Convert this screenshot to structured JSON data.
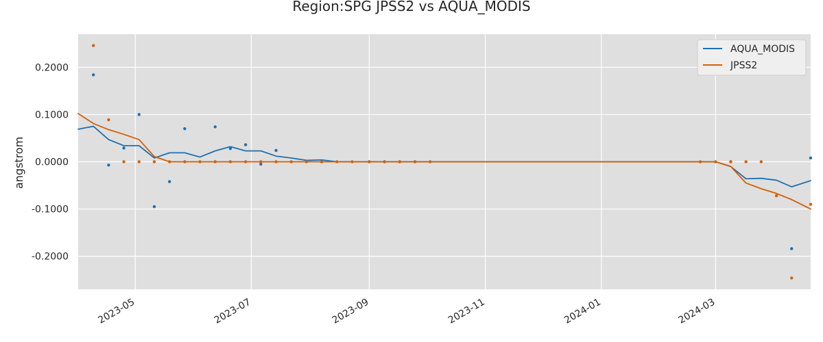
{
  "chart_data": {
    "type": "line",
    "title": "Region:SPG JPSS2 vs AQUA_MODIS",
    "xlabel": "",
    "ylabel": "angstrom",
    "xlim": [
      "2023-04-01",
      "2024-04-20"
    ],
    "ylim": [
      -0.27,
      0.27
    ],
    "grid": true,
    "legend_position": "top-right",
    "x_ticks": [
      "2023-05-01",
      "2023-07-01",
      "2023-09-01",
      "2023-11-01",
      "2024-01-01",
      "2024-03-01"
    ],
    "x_tick_labels": [
      "2023-05",
      "2023-07",
      "2023-09",
      "2023-11",
      "2024-01",
      "2024-03"
    ],
    "y_ticks": [
      0.2,
      0.1,
      0.0,
      -0.1,
      -0.2
    ],
    "y_tick_labels": [
      "0.2000",
      "0.1000",
      "0.0000",
      "-0.1000",
      "-0.2000"
    ],
    "series": [
      {
        "name": "AQUA_MODIS",
        "color": "#1f6fb0",
        "line": [
          [
            "2023-04-01",
            0.069
          ],
          [
            "2023-04-09",
            0.075
          ],
          [
            "2023-04-17",
            0.047
          ],
          [
            "2023-04-25",
            0.034
          ],
          [
            "2023-05-03",
            0.034
          ],
          [
            "2023-05-11",
            0.008
          ],
          [
            "2023-05-19",
            0.019
          ],
          [
            "2023-05-27",
            0.019
          ],
          [
            "2023-06-04",
            0.01
          ],
          [
            "2023-06-12",
            0.023
          ],
          [
            "2023-06-20",
            0.032
          ],
          [
            "2023-06-28",
            0.023
          ],
          [
            "2023-07-06",
            0.023
          ],
          [
            "2023-07-14",
            0.012
          ],
          [
            "2023-07-22",
            0.008
          ],
          [
            "2023-07-30",
            0.003
          ],
          [
            "2023-08-07",
            0.004
          ],
          [
            "2023-08-15",
            0.0
          ],
          [
            "2023-08-23",
            0.0
          ],
          [
            "2024-03-01",
            0.0
          ],
          [
            "2024-03-09",
            -0.01
          ],
          [
            "2024-03-17",
            -0.036
          ],
          [
            "2024-03-25",
            -0.035
          ],
          [
            "2024-04-02",
            -0.039
          ],
          [
            "2024-04-10",
            -0.053
          ],
          [
            "2024-04-20",
            -0.04
          ]
        ],
        "points": [
          [
            "2023-04-09",
            0.184
          ],
          [
            "2023-04-17",
            -0.007
          ],
          [
            "2023-04-25",
            0.029
          ],
          [
            "2023-05-03",
            0.1
          ],
          [
            "2023-05-11",
            -0.095
          ],
          [
            "2023-05-19",
            -0.042
          ],
          [
            "2023-05-27",
            0.07
          ],
          [
            "2023-06-12",
            0.074
          ],
          [
            "2023-06-20",
            0.028
          ],
          [
            "2023-06-28",
            0.036
          ],
          [
            "2023-07-06",
            -0.005
          ],
          [
            "2023-07-14",
            0.024
          ],
          [
            "2023-08-07",
            0.0
          ],
          [
            "2023-09-01",
            0.0
          ],
          [
            "2023-09-09",
            0.0
          ],
          [
            "2023-09-17",
            0.0
          ],
          [
            "2023-09-25",
            0.0
          ],
          [
            "2024-03-09",
            0.0
          ],
          [
            "2024-04-10",
            -0.184
          ],
          [
            "2024-04-20",
            0.008
          ]
        ]
      },
      {
        "name": "JPSS2",
        "color": "#d55e00",
        "line": [
          [
            "2023-04-01",
            0.102
          ],
          [
            "2023-04-09",
            0.081
          ],
          [
            "2023-04-17",
            0.068
          ],
          [
            "2023-04-25",
            0.058
          ],
          [
            "2023-05-03",
            0.047
          ],
          [
            "2023-05-11",
            0.011
          ],
          [
            "2023-05-19",
            0.0
          ],
          [
            "2024-03-01",
            0.0
          ],
          [
            "2024-03-09",
            -0.01
          ],
          [
            "2024-03-17",
            -0.045
          ],
          [
            "2024-03-25",
            -0.057
          ],
          [
            "2024-04-02",
            -0.067
          ],
          [
            "2024-04-10",
            -0.08
          ],
          [
            "2024-04-20",
            -0.1
          ]
        ],
        "points": [
          [
            "2023-04-09",
            0.246
          ],
          [
            "2023-04-17",
            0.089
          ],
          [
            "2023-04-25",
            0.0
          ],
          [
            "2023-05-03",
            0.0
          ],
          [
            "2023-05-11",
            0.0
          ],
          [
            "2023-05-19",
            0.0
          ],
          [
            "2023-05-27",
            0.0
          ],
          [
            "2023-06-04",
            0.0
          ],
          [
            "2023-06-12",
            0.0
          ],
          [
            "2023-06-20",
            0.0
          ],
          [
            "2023-06-28",
            0.0
          ],
          [
            "2023-07-06",
            0.0
          ],
          [
            "2023-07-14",
            0.0
          ],
          [
            "2023-07-22",
            0.0
          ],
          [
            "2023-07-30",
            0.0
          ],
          [
            "2023-08-07",
            0.0
          ],
          [
            "2023-08-15",
            0.0
          ],
          [
            "2023-08-23",
            0.0
          ],
          [
            "2023-09-01",
            0.0
          ],
          [
            "2023-09-09",
            0.0
          ],
          [
            "2023-09-17",
            0.0
          ],
          [
            "2023-09-25",
            0.0
          ],
          [
            "2023-10-03",
            0.0
          ],
          [
            "2024-02-22",
            0.0
          ],
          [
            "2024-03-01",
            0.0
          ],
          [
            "2024-03-09",
            0.0
          ],
          [
            "2024-03-17",
            0.0
          ],
          [
            "2024-03-25",
            0.0
          ],
          [
            "2024-04-02",
            -0.072
          ],
          [
            "2024-04-10",
            -0.246
          ],
          [
            "2024-04-20",
            -0.09
          ]
        ]
      }
    ]
  }
}
